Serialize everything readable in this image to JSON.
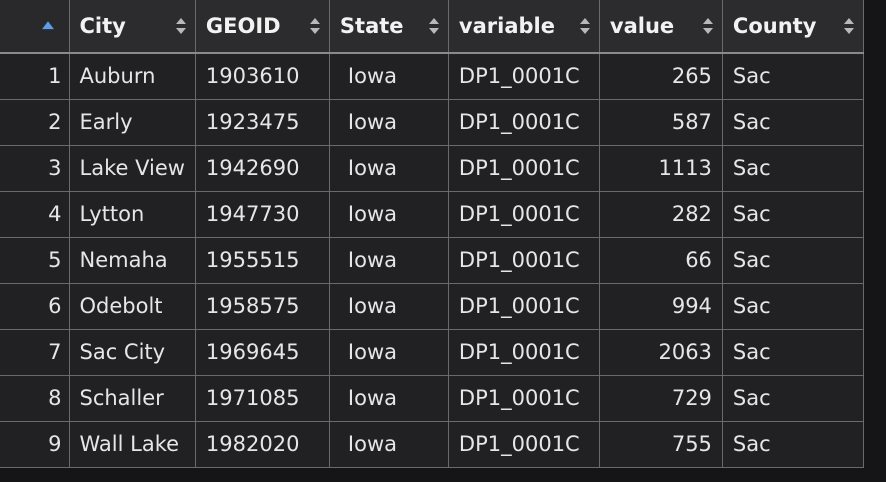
{
  "table": {
    "columns": [
      {
        "key": "index",
        "label": ""
      },
      {
        "key": "City",
        "label": "City"
      },
      {
        "key": "GEOID",
        "label": "GEOID"
      },
      {
        "key": "State",
        "label": "State"
      },
      {
        "key": "variable",
        "label": "variable"
      },
      {
        "key": "value",
        "label": "value"
      },
      {
        "key": "County",
        "label": "County"
      }
    ],
    "sort": {
      "column": "index",
      "direction": "ascending"
    },
    "rows": [
      {
        "index": "1",
        "City": "Auburn",
        "GEOID": "1903610",
        "State": "Iowa",
        "variable": "DP1_0001C",
        "value": "265",
        "County": "Sac"
      },
      {
        "index": "2",
        "City": "Early",
        "GEOID": "1923475",
        "State": "Iowa",
        "variable": "DP1_0001C",
        "value": "587",
        "County": "Sac"
      },
      {
        "index": "3",
        "City": "Lake View",
        "GEOID": "1942690",
        "State": "Iowa",
        "variable": "DP1_0001C",
        "value": "1113",
        "County": "Sac"
      },
      {
        "index": "4",
        "City": "Lytton",
        "GEOID": "1947730",
        "State": "Iowa",
        "variable": "DP1_0001C",
        "value": "282",
        "County": "Sac"
      },
      {
        "index": "5",
        "City": "Nemaha",
        "GEOID": "1955515",
        "State": "Iowa",
        "variable": "DP1_0001C",
        "value": "66",
        "County": "Sac"
      },
      {
        "index": "6",
        "City": "Odebolt",
        "GEOID": "1958575",
        "State": "Iowa",
        "variable": "DP1_0001C",
        "value": "994",
        "County": "Sac"
      },
      {
        "index": "7",
        "City": "Sac City",
        "GEOID": "1969645",
        "State": "Iowa",
        "variable": "DP1_0001C",
        "value": "2063",
        "County": "Sac"
      },
      {
        "index": "8",
        "City": "Schaller",
        "GEOID": "1971085",
        "State": "Iowa",
        "variable": "DP1_0001C",
        "value": "729",
        "County": "Sac"
      },
      {
        "index": "9",
        "City": "Wall Lake",
        "GEOID": "1982020",
        "State": "Iowa",
        "variable": "DP1_0001C",
        "value": "755",
        "County": "Sac"
      }
    ]
  },
  "icons": {
    "sort_ascending": "sort-ascending-icon",
    "sort_both": "sort-both-icon"
  },
  "colors": {
    "background": "#151517",
    "cell_background": "#212123",
    "header_background": "#2c2c2e",
    "grid_line": "#6a6a6c",
    "text": "#e6e6e6",
    "sort_active": "#5aa0e6"
  }
}
